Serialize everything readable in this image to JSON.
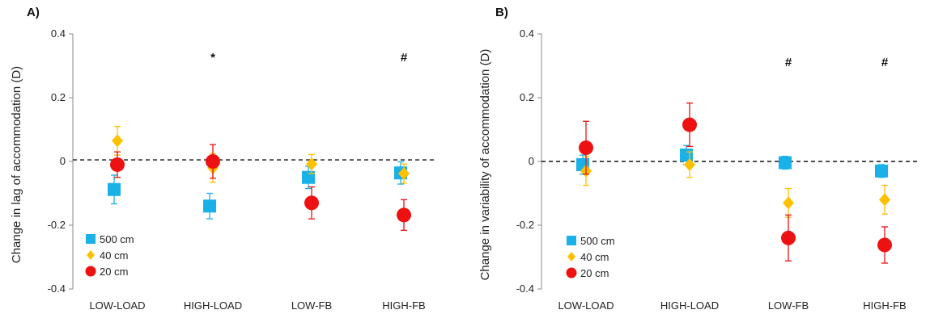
{
  "chart_data": [
    {
      "type": "scatter",
      "panel_label": "A)",
      "ylabel": "Change in lag of accommodation (D)",
      "ylim": [
        -0.4,
        0.4
      ],
      "yticks": [
        "0.4",
        "0.2",
        "0",
        "-0.2",
        "-0.4"
      ],
      "categories": [
        "LOW-LOAD",
        "HIGH-LOAD",
        "LOW-FB",
        "HIGH-FB"
      ],
      "reference_line": 0.005,
      "annotations": [
        "",
        "*",
        "",
        "#"
      ],
      "legend_position": "bottom-left",
      "series": [
        {
          "name": "500 cm",
          "marker": "square",
          "color": "#1ab0e8",
          "values": [
            -0.088,
            -0.14,
            -0.05,
            -0.036
          ],
          "errors": [
            0.045,
            0.04,
            0.035,
            0.035
          ]
        },
        {
          "name": "40 cm",
          "marker": "diamond",
          "color": "#ffc000",
          "values": [
            0.065,
            -0.02,
            -0.008,
            -0.038
          ],
          "errors": [
            0.045,
            0.045,
            0.03,
            0.03
          ]
        },
        {
          "name": "20 cm",
          "marker": "circle",
          "color": "#ee1111",
          "values": [
            -0.01,
            0.0,
            -0.13,
            -0.168
          ],
          "errors": [
            0.04,
            0.053,
            0.05,
            0.048
          ]
        }
      ]
    },
    {
      "type": "scatter",
      "panel_label": "B)",
      "ylabel": "Change in variability of accommodation (D)",
      "ylim": [
        -0.4,
        0.4
      ],
      "yticks": [
        "0.4",
        "0.2",
        "0",
        "-0.2",
        "-0.4"
      ],
      "categories": [
        "LOW-LOAD",
        "HIGH-LOAD",
        "LOW-FB",
        "HIGH-FB"
      ],
      "reference_line": 0.0,
      "annotations": [
        "",
        "",
        "#",
        "#"
      ],
      "legend_position": "bottom-left",
      "series": [
        {
          "name": "500 cm",
          "marker": "square",
          "color": "#1ab0e8",
          "values": [
            -0.01,
            0.02,
            -0.004,
            -0.03
          ],
          "errors": [
            0.03,
            0.03,
            0.02,
            0.02
          ]
        },
        {
          "name": "40 cm",
          "marker": "diamond",
          "color": "#ffc000",
          "values": [
            -0.03,
            -0.01,
            -0.13,
            -0.12
          ],
          "errors": [
            0.045,
            0.04,
            0.045,
            0.045
          ]
        },
        {
          "name": "20 cm",
          "marker": "circle",
          "color": "#ee1111",
          "values": [
            0.043,
            0.115,
            -0.24,
            -0.262
          ],
          "errors": [
            0.083,
            0.068,
            0.072,
            0.057
          ]
        }
      ]
    }
  ]
}
